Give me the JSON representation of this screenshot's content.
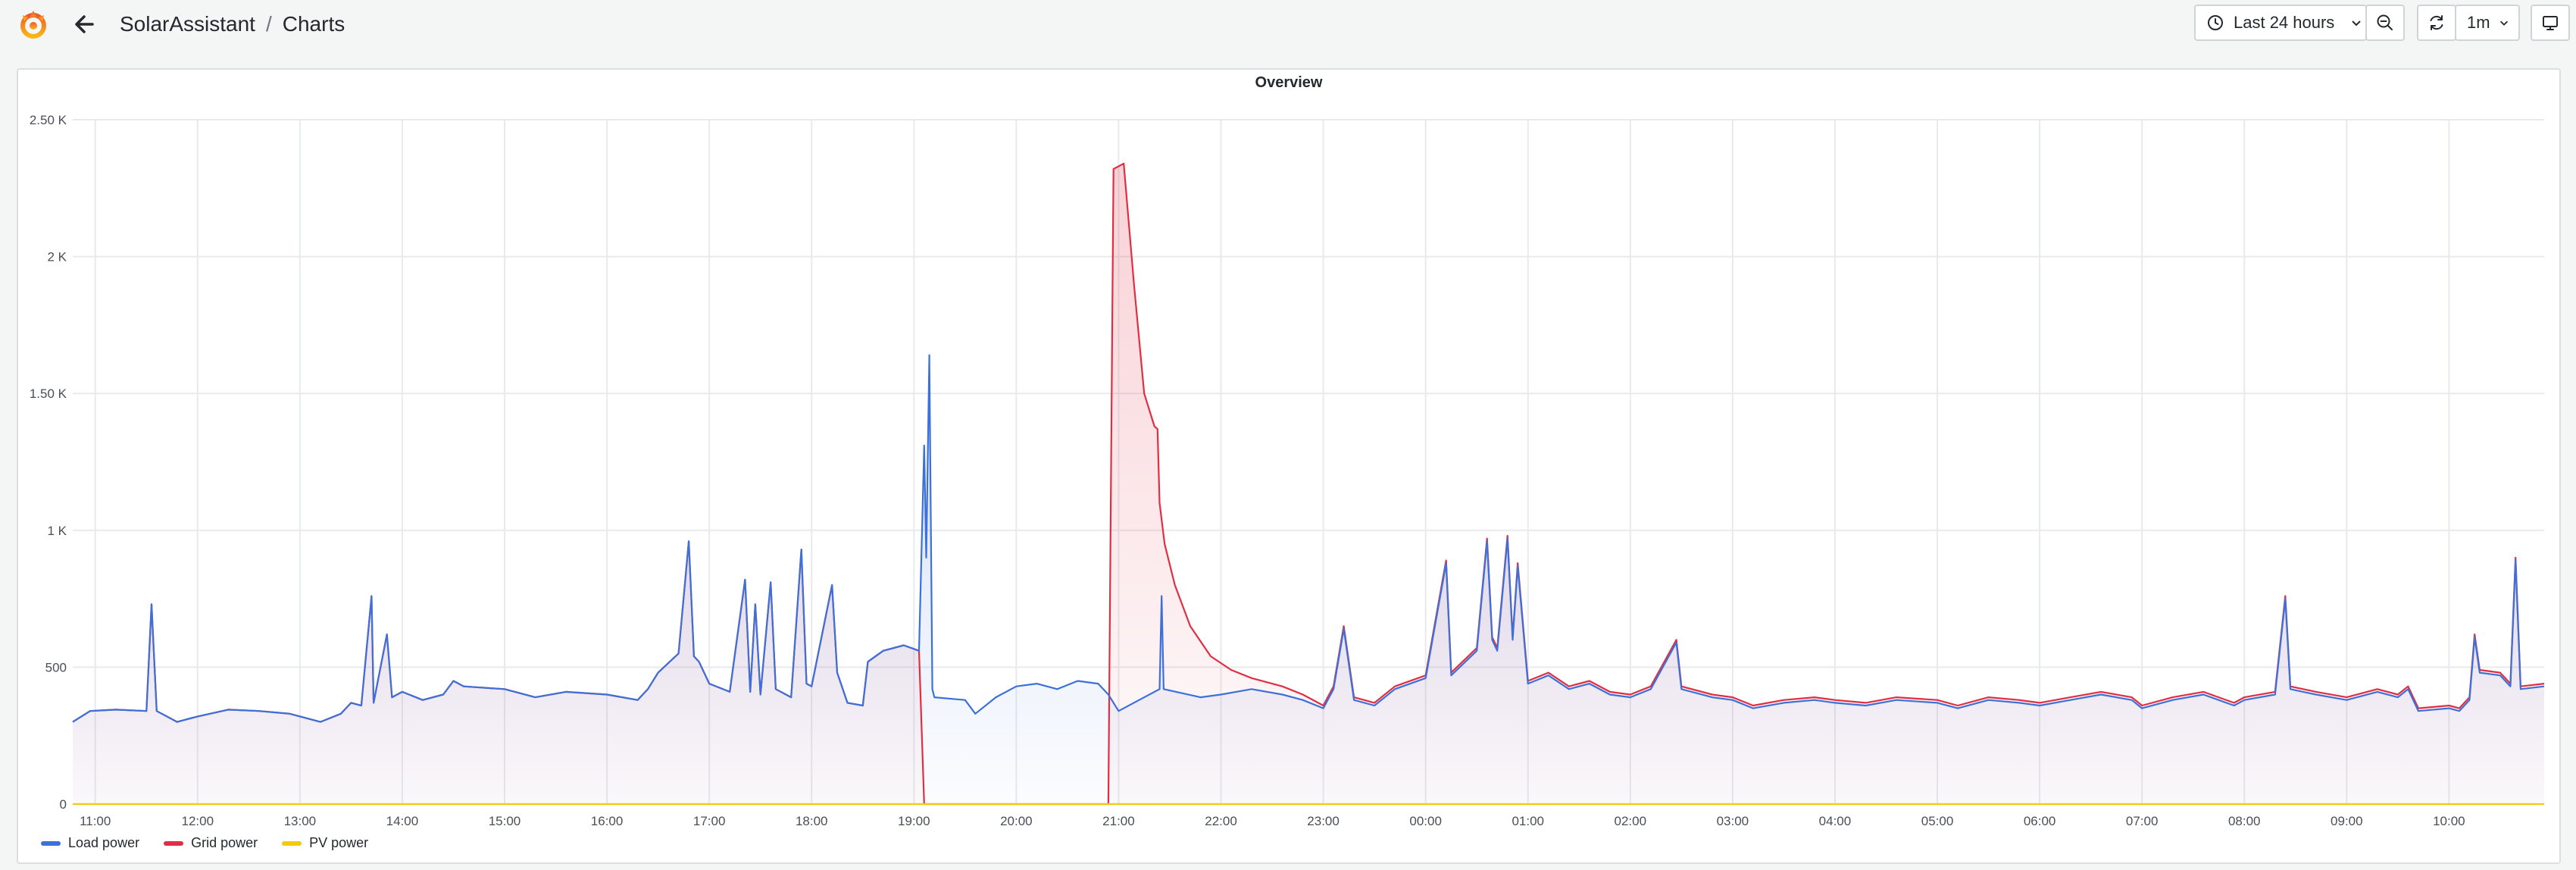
{
  "breadcrumb": {
    "folder": "SolarAssistant",
    "separator": "/",
    "dashboard": "Charts"
  },
  "toolbar": {
    "time_range_label": "Last 24 hours",
    "refresh_interval": "1m"
  },
  "icons": [
    "grafana-logo",
    "arrow-left-icon",
    "clock-icon",
    "chevron-down-icon",
    "zoom-out-icon",
    "refresh-icon",
    "tv-monitor-icon"
  ],
  "colors": {
    "load": "#3d71d9",
    "grid": "#e02f44",
    "pv": "#f2cc0c"
  },
  "panel": {
    "title": "Overview"
  },
  "chart_data": {
    "type": "line",
    "title": "Overview",
    "x_unit": "hours",
    "xlim": [
      10.78,
      34.93
    ],
    "ylim": [
      0,
      2500
    ],
    "grid": true,
    "legend_position": "bottom-left",
    "y_ticks": [
      {
        "value": 0,
        "label": "0"
      },
      {
        "value": 500,
        "label": "500"
      },
      {
        "value": 1000,
        "label": "1 K"
      },
      {
        "value": 1500,
        "label": "1.50 K"
      },
      {
        "value": 2000,
        "label": "2 K"
      },
      {
        "value": 2500,
        "label": "2.50 K"
      }
    ],
    "x_ticks": [
      {
        "value": 11,
        "label": "11:00"
      },
      {
        "value": 12,
        "label": "12:00"
      },
      {
        "value": 13,
        "label": "13:00"
      },
      {
        "value": 14,
        "label": "14:00"
      },
      {
        "value": 15,
        "label": "15:00"
      },
      {
        "value": 16,
        "label": "16:00"
      },
      {
        "value": 17,
        "label": "17:00"
      },
      {
        "value": 18,
        "label": "18:00"
      },
      {
        "value": 19,
        "label": "19:00"
      },
      {
        "value": 20,
        "label": "20:00"
      },
      {
        "value": 21,
        "label": "21:00"
      },
      {
        "value": 22,
        "label": "22:00"
      },
      {
        "value": 23,
        "label": "23:00"
      },
      {
        "value": 24,
        "label": "00:00"
      },
      {
        "value": 25,
        "label": "01:00"
      },
      {
        "value": 26,
        "label": "02:00"
      },
      {
        "value": 27,
        "label": "03:00"
      },
      {
        "value": 28,
        "label": "04:00"
      },
      {
        "value": 29,
        "label": "05:00"
      },
      {
        "value": 30,
        "label": "06:00"
      },
      {
        "value": 31,
        "label": "07:00"
      },
      {
        "value": 32,
        "label": "08:00"
      },
      {
        "value": 33,
        "label": "09:00"
      },
      {
        "value": 34,
        "label": "10:00"
      }
    ],
    "series": [
      {
        "name": "Load power",
        "color": "#3d71d9",
        "points": [
          [
            10.78,
            300
          ],
          [
            10.95,
            340
          ],
          [
            11.2,
            345
          ],
          [
            11.5,
            340
          ],
          [
            11.55,
            730
          ],
          [
            11.6,
            340
          ],
          [
            11.8,
            300
          ],
          [
            12.0,
            320
          ],
          [
            12.3,
            345
          ],
          [
            12.6,
            340
          ],
          [
            12.9,
            330
          ],
          [
            13.2,
            300
          ],
          [
            13.4,
            330
          ],
          [
            13.5,
            370
          ],
          [
            13.6,
            360
          ],
          [
            13.7,
            760
          ],
          [
            13.72,
            370
          ],
          [
            13.85,
            620
          ],
          [
            13.9,
            390
          ],
          [
            14.0,
            410
          ],
          [
            14.2,
            380
          ],
          [
            14.4,
            400
          ],
          [
            14.5,
            450
          ],
          [
            14.6,
            430
          ],
          [
            15.0,
            420
          ],
          [
            15.3,
            390
          ],
          [
            15.6,
            410
          ],
          [
            16.0,
            400
          ],
          [
            16.3,
            380
          ],
          [
            16.4,
            420
          ],
          [
            16.5,
            480
          ],
          [
            16.7,
            550
          ],
          [
            16.8,
            960
          ],
          [
            16.85,
            540
          ],
          [
            16.9,
            520
          ],
          [
            17.0,
            440
          ],
          [
            17.2,
            410
          ],
          [
            17.35,
            820
          ],
          [
            17.4,
            410
          ],
          [
            17.45,
            730
          ],
          [
            17.5,
            400
          ],
          [
            17.6,
            810
          ],
          [
            17.65,
            420
          ],
          [
            17.8,
            390
          ],
          [
            17.9,
            930
          ],
          [
            17.95,
            440
          ],
          [
            18.0,
            430
          ],
          [
            18.2,
            800
          ],
          [
            18.25,
            480
          ],
          [
            18.35,
            370
          ],
          [
            18.5,
            360
          ],
          [
            18.55,
            520
          ],
          [
            18.7,
            560
          ],
          [
            18.9,
            580
          ],
          [
            19.05,
            560
          ],
          [
            19.1,
            1310
          ],
          [
            19.12,
            900
          ],
          [
            19.15,
            1640
          ],
          [
            19.18,
            420
          ],
          [
            19.2,
            390
          ],
          [
            19.5,
            380
          ],
          [
            19.6,
            330
          ],
          [
            19.8,
            390
          ],
          [
            20.0,
            430
          ],
          [
            20.2,
            440
          ],
          [
            20.4,
            420
          ],
          [
            20.6,
            450
          ],
          [
            20.8,
            440
          ],
          [
            20.9,
            400
          ],
          [
            21.0,
            340
          ],
          [
            21.2,
            380
          ],
          [
            21.4,
            420
          ],
          [
            21.42,
            760
          ],
          [
            21.44,
            420
          ],
          [
            21.8,
            390
          ],
          [
            22.0,
            400
          ],
          [
            22.3,
            420
          ],
          [
            22.6,
            400
          ],
          [
            22.8,
            380
          ],
          [
            23.0,
            350
          ],
          [
            23.1,
            420
          ],
          [
            23.2,
            640
          ],
          [
            23.3,
            380
          ],
          [
            23.5,
            360
          ],
          [
            23.7,
            420
          ],
          [
            24.0,
            460
          ],
          [
            24.2,
            880
          ],
          [
            24.25,
            470
          ],
          [
            24.5,
            560
          ],
          [
            24.6,
            960
          ],
          [
            24.65,
            600
          ],
          [
            24.7,
            560
          ],
          [
            24.8,
            970
          ],
          [
            24.85,
            600
          ],
          [
            24.9,
            870
          ],
          [
            25.0,
            440
          ],
          [
            25.2,
            470
          ],
          [
            25.4,
            420
          ],
          [
            25.6,
            440
          ],
          [
            25.8,
            400
          ],
          [
            26.0,
            390
          ],
          [
            26.2,
            420
          ],
          [
            26.45,
            590
          ],
          [
            26.5,
            420
          ],
          [
            26.8,
            390
          ],
          [
            27.0,
            380
          ],
          [
            27.2,
            350
          ],
          [
            27.5,
            370
          ],
          [
            27.8,
            380
          ],
          [
            28.0,
            370
          ],
          [
            28.3,
            360
          ],
          [
            28.6,
            380
          ],
          [
            29.0,
            370
          ],
          [
            29.2,
            350
          ],
          [
            29.5,
            380
          ],
          [
            29.8,
            370
          ],
          [
            30.0,
            360
          ],
          [
            30.3,
            380
          ],
          [
            30.6,
            400
          ],
          [
            30.9,
            380
          ],
          [
            31.0,
            350
          ],
          [
            31.3,
            380
          ],
          [
            31.6,
            400
          ],
          [
            31.9,
            360
          ],
          [
            32.0,
            380
          ],
          [
            32.3,
            400
          ],
          [
            32.4,
            750
          ],
          [
            32.45,
            420
          ],
          [
            32.7,
            400
          ],
          [
            33.0,
            380
          ],
          [
            33.3,
            410
          ],
          [
            33.5,
            390
          ],
          [
            33.6,
            420
          ],
          [
            33.7,
            340
          ],
          [
            34.0,
            350
          ],
          [
            34.1,
            340
          ],
          [
            34.2,
            380
          ],
          [
            34.25,
            610
          ],
          [
            34.3,
            480
          ],
          [
            34.5,
            470
          ],
          [
            34.6,
            430
          ],
          [
            34.65,
            890
          ],
          [
            34.7,
            420
          ],
          [
            34.93,
            430
          ]
        ]
      },
      {
        "name": "Grid power",
        "color": "#e02f44",
        "points": [
          [
            10.78,
            300
          ],
          [
            10.95,
            340
          ],
          [
            11.2,
            345
          ],
          [
            11.5,
            340
          ],
          [
            11.55,
            730
          ],
          [
            11.6,
            340
          ],
          [
            11.8,
            300
          ],
          [
            12.0,
            320
          ],
          [
            12.3,
            345
          ],
          [
            12.6,
            340
          ],
          [
            12.9,
            330
          ],
          [
            13.2,
            300
          ],
          [
            13.4,
            330
          ],
          [
            13.5,
            370
          ],
          [
            13.6,
            360
          ],
          [
            13.7,
            760
          ],
          [
            13.72,
            370
          ],
          [
            13.85,
            620
          ],
          [
            13.9,
            390
          ],
          [
            14.0,
            410
          ],
          [
            14.2,
            380
          ],
          [
            14.4,
            400
          ],
          [
            14.5,
            450
          ],
          [
            14.6,
            430
          ],
          [
            15.0,
            420
          ],
          [
            15.3,
            390
          ],
          [
            15.6,
            410
          ],
          [
            16.0,
            400
          ],
          [
            16.3,
            380
          ],
          [
            16.4,
            420
          ],
          [
            16.5,
            480
          ],
          [
            16.7,
            550
          ],
          [
            16.8,
            960
          ],
          [
            16.85,
            540
          ],
          [
            16.9,
            520
          ],
          [
            17.0,
            440
          ],
          [
            17.2,
            410
          ],
          [
            17.35,
            820
          ],
          [
            17.4,
            410
          ],
          [
            17.45,
            730
          ],
          [
            17.5,
            400
          ],
          [
            17.6,
            810
          ],
          [
            17.65,
            420
          ],
          [
            17.8,
            390
          ],
          [
            17.9,
            930
          ],
          [
            17.95,
            440
          ],
          [
            18.0,
            430
          ],
          [
            18.2,
            800
          ],
          [
            18.25,
            480
          ],
          [
            18.35,
            370
          ],
          [
            18.5,
            360
          ],
          [
            18.55,
            520
          ],
          [
            18.7,
            560
          ],
          [
            18.9,
            580
          ],
          [
            19.05,
            560
          ],
          [
            19.1,
            0
          ],
          [
            20.9,
            0
          ],
          [
            20.95,
            2320
          ],
          [
            21.05,
            2340
          ],
          [
            21.15,
            1900
          ],
          [
            21.25,
            1500
          ],
          [
            21.35,
            1380
          ],
          [
            21.38,
            1370
          ],
          [
            21.4,
            1100
          ],
          [
            21.45,
            950
          ],
          [
            21.55,
            800
          ],
          [
            21.7,
            650
          ],
          [
            21.9,
            540
          ],
          [
            22.1,
            490
          ],
          [
            22.3,
            460
          ],
          [
            22.6,
            430
          ],
          [
            22.8,
            400
          ],
          [
            23.0,
            360
          ],
          [
            23.1,
            430
          ],
          [
            23.2,
            650
          ],
          [
            23.3,
            390
          ],
          [
            23.5,
            370
          ],
          [
            23.7,
            430
          ],
          [
            24.0,
            470
          ],
          [
            24.2,
            890
          ],
          [
            24.25,
            480
          ],
          [
            24.5,
            570
          ],
          [
            24.6,
            970
          ],
          [
            24.65,
            610
          ],
          [
            24.7,
            570
          ],
          [
            24.8,
            980
          ],
          [
            24.85,
            610
          ],
          [
            24.9,
            880
          ],
          [
            25.0,
            450
          ],
          [
            25.2,
            480
          ],
          [
            25.4,
            430
          ],
          [
            25.6,
            450
          ],
          [
            25.8,
            410
          ],
          [
            26.0,
            400
          ],
          [
            26.2,
            430
          ],
          [
            26.45,
            600
          ],
          [
            26.5,
            430
          ],
          [
            26.8,
            400
          ],
          [
            27.0,
            390
          ],
          [
            27.2,
            360
          ],
          [
            27.5,
            380
          ],
          [
            27.8,
            390
          ],
          [
            28.0,
            380
          ],
          [
            28.3,
            370
          ],
          [
            28.6,
            390
          ],
          [
            29.0,
            380
          ],
          [
            29.2,
            360
          ],
          [
            29.5,
            390
          ],
          [
            29.8,
            380
          ],
          [
            30.0,
            370
          ],
          [
            30.3,
            390
          ],
          [
            30.6,
            410
          ],
          [
            30.9,
            390
          ],
          [
            31.0,
            360
          ],
          [
            31.3,
            390
          ],
          [
            31.6,
            410
          ],
          [
            31.9,
            370
          ],
          [
            32.0,
            390
          ],
          [
            32.3,
            410
          ],
          [
            32.4,
            760
          ],
          [
            32.45,
            430
          ],
          [
            32.7,
            410
          ],
          [
            33.0,
            390
          ],
          [
            33.3,
            420
          ],
          [
            33.5,
            400
          ],
          [
            33.6,
            430
          ],
          [
            33.7,
            350
          ],
          [
            34.0,
            360
          ],
          [
            34.1,
            350
          ],
          [
            34.2,
            390
          ],
          [
            34.25,
            620
          ],
          [
            34.3,
            490
          ],
          [
            34.5,
            480
          ],
          [
            34.6,
            440
          ],
          [
            34.65,
            900
          ],
          [
            34.7,
            430
          ],
          [
            34.93,
            440
          ]
        ]
      },
      {
        "name": "PV power",
        "color": "#f2cc0c",
        "points": [
          [
            10.78,
            0
          ],
          [
            34.93,
            0
          ]
        ]
      }
    ]
  }
}
